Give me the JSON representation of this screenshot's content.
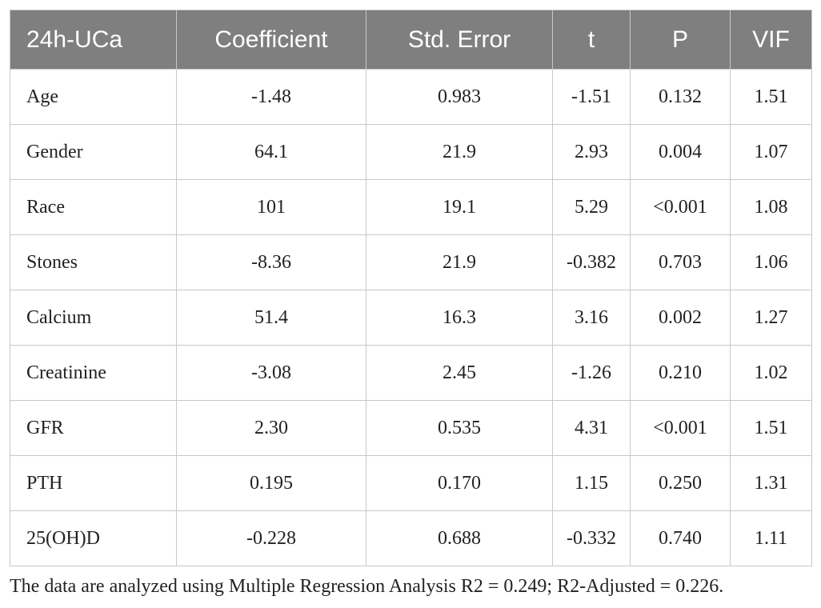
{
  "table": {
    "header": [
      "24h-UCa",
      "Coefficient",
      "Std. Error",
      "t",
      "P",
      "VIF"
    ],
    "rows": [
      [
        "Age",
        "-1.48",
        "0.983",
        "-1.51",
        "0.132",
        "1.51"
      ],
      [
        "Gender",
        "64.1",
        "21.9",
        "2.93",
        "0.004",
        "1.07"
      ],
      [
        "Race",
        "101",
        "19.1",
        "5.29",
        "<0.001",
        "1.08"
      ],
      [
        "Stones",
        "-8.36",
        "21.9",
        "-0.382",
        "0.703",
        "1.06"
      ],
      [
        "Calcium",
        "51.4",
        "16.3",
        "3.16",
        "0.002",
        "1.27"
      ],
      [
        "Creatinine",
        "-3.08",
        "2.45",
        "-1.26",
        "0.210",
        "1.02"
      ],
      [
        "GFR",
        "2.30",
        "0.535",
        "4.31",
        "<0.001",
        "1.51"
      ],
      [
        "PTH",
        "0.195",
        "0.170",
        "1.15",
        "0.250",
        "1.31"
      ],
      [
        "25(OH)D",
        "-0.228",
        "0.688",
        "-0.332",
        "0.740",
        "1.11"
      ]
    ]
  },
  "footnote": "The data are analyzed using Multiple Regression Analysis R2 = 0.249; R2-Adjusted = 0.226."
}
